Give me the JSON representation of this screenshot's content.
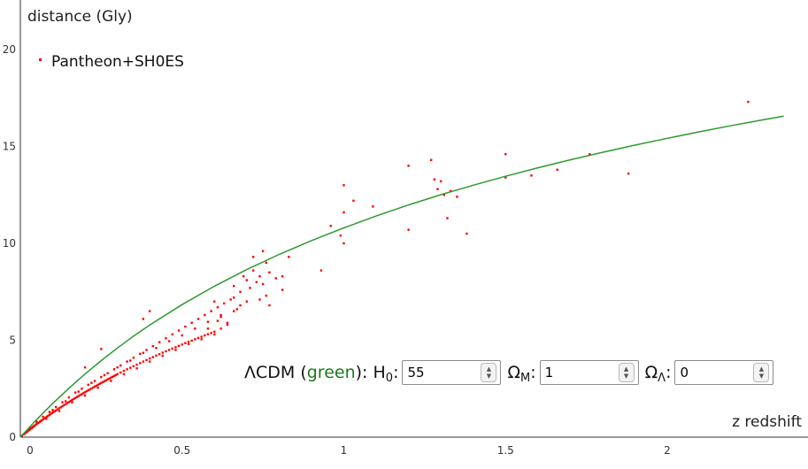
{
  "chart_data": {
    "type": "scatter",
    "ylabel": "distance (Gly)",
    "xlabel": "z redshift",
    "xlim": [
      0,
      2.4
    ],
    "ylim": [
      0,
      22
    ],
    "xticks": [
      0,
      0.5,
      1,
      1.5,
      2
    ],
    "xtick_labels": [
      "0",
      "0.5",
      "1",
      "1.5",
      "2"
    ],
    "yticks": [
      0,
      5,
      10,
      15,
      20
    ],
    "ytick_labels": [
      "0",
      "5",
      "10",
      "15",
      "20"
    ],
    "grid": false,
    "legend_position": "top-left",
    "series": [
      {
        "name": "Pantheon+SH0ES",
        "kind": "scatter",
        "color": "#ff0000",
        "points": [
          [
            0.005,
            0.07
          ],
          [
            0.01,
            0.14
          ],
          [
            0.012,
            0.17
          ],
          [
            0.015,
            0.21
          ],
          [
            0.018,
            0.25
          ],
          [
            0.02,
            0.28
          ],
          [
            0.022,
            0.3
          ],
          [
            0.025,
            0.34
          ],
          [
            0.028,
            0.38
          ],
          [
            0.03,
            0.41
          ],
          [
            0.033,
            0.45
          ],
          [
            0.035,
            0.47
          ],
          [
            0.038,
            0.51
          ],
          [
            0.04,
            0.54
          ],
          [
            0.043,
            0.58
          ],
          [
            0.046,
            0.62
          ],
          [
            0.05,
            0.67
          ],
          [
            0.053,
            0.71
          ],
          [
            0.056,
            0.74
          ],
          [
            0.06,
            0.79
          ],
          [
            0.063,
            0.83
          ],
          [
            0.066,
            0.86
          ],
          [
            0.07,
            0.91
          ],
          [
            0.074,
            0.96
          ],
          [
            0.078,
            1.01
          ],
          [
            0.082,
            1.06
          ],
          [
            0.086,
            1.1
          ],
          [
            0.09,
            1.15
          ],
          [
            0.094,
            1.2
          ],
          [
            0.098,
            1.24
          ],
          [
            0.102,
            1.29
          ],
          [
            0.106,
            1.33
          ],
          [
            0.11,
            1.38
          ],
          [
            0.115,
            1.43
          ],
          [
            0.12,
            1.49
          ],
          [
            0.125,
            1.54
          ],
          [
            0.13,
            1.6
          ],
          [
            0.135,
            1.65
          ],
          [
            0.14,
            1.7
          ],
          [
            0.145,
            1.76
          ],
          [
            0.15,
            1.81
          ],
          [
            0.155,
            1.86
          ],
          [
            0.16,
            1.92
          ],
          [
            0.165,
            1.97
          ],
          [
            0.17,
            2.02
          ],
          [
            0.175,
            2.07
          ],
          [
            0.18,
            2.12
          ],
          [
            0.185,
            2.17
          ],
          [
            0.19,
            2.22
          ],
          [
            0.195,
            2.27
          ],
          [
            0.2,
            2.32
          ],
          [
            0.205,
            2.37
          ],
          [
            0.21,
            2.42
          ],
          [
            0.215,
            2.46
          ],
          [
            0.22,
            2.51
          ],
          [
            0.225,
            2.56
          ],
          [
            0.23,
            2.61
          ],
          [
            0.235,
            2.65
          ],
          [
            0.24,
            2.7
          ],
          [
            0.245,
            2.75
          ],
          [
            0.25,
            2.8
          ],
          [
            0.255,
            2.84
          ],
          [
            0.26,
            2.89
          ],
          [
            0.265,
            2.93
          ],
          [
            0.27,
            2.98
          ],
          [
            0.275,
            3.02
          ],
          [
            0.28,
            3.07
          ],
          [
            0.285,
            3.11
          ],
          [
            0.29,
            3.16
          ],
          [
            0.295,
            3.2
          ],
          [
            0.3,
            3.25
          ],
          [
            0.31,
            3.33
          ],
          [
            0.32,
            3.42
          ],
          [
            0.33,
            3.5
          ],
          [
            0.34,
            3.58
          ],
          [
            0.35,
            3.66
          ],
          [
            0.36,
            3.74
          ],
          [
            0.37,
            3.82
          ],
          [
            0.38,
            3.9
          ],
          [
            0.39,
            3.98
          ],
          [
            0.4,
            4.06
          ],
          [
            0.41,
            4.13
          ],
          [
            0.42,
            4.21
          ],
          [
            0.43,
            4.28
          ],
          [
            0.44,
            4.36
          ],
          [
            0.45,
            4.43
          ],
          [
            0.46,
            4.5
          ],
          [
            0.47,
            4.57
          ],
          [
            0.48,
            4.64
          ],
          [
            0.49,
            4.71
          ],
          [
            0.5,
            4.78
          ],
          [
            0.51,
            4.85
          ],
          [
            0.52,
            4.92
          ],
          [
            0.53,
            4.98
          ],
          [
            0.54,
            5.05
          ],
          [
            0.55,
            5.12
          ],
          [
            0.56,
            5.18
          ],
          [
            0.57,
            5.25
          ],
          [
            0.58,
            5.31
          ],
          [
            0.59,
            5.37
          ],
          [
            0.6,
            5.44
          ],
          [
            0.03,
            0.5
          ],
          [
            0.05,
            0.8
          ],
          [
            0.07,
            1.05
          ],
          [
            0.09,
            1.3
          ],
          [
            0.11,
            1.55
          ],
          [
            0.13,
            1.8
          ],
          [
            0.15,
            2.05
          ],
          [
            0.17,
            2.3
          ],
          [
            0.19,
            2.5
          ],
          [
            0.21,
            2.7
          ],
          [
            0.23,
            2.9
          ],
          [
            0.25,
            3.1
          ],
          [
            0.27,
            3.3
          ],
          [
            0.29,
            3.5
          ],
          [
            0.31,
            3.7
          ],
          [
            0.33,
            3.9
          ],
          [
            0.35,
            4.1
          ],
          [
            0.37,
            4.3
          ],
          [
            0.39,
            4.5
          ],
          [
            0.41,
            4.7
          ],
          [
            0.43,
            4.9
          ],
          [
            0.45,
            5.1
          ],
          [
            0.47,
            5.3
          ],
          [
            0.49,
            5.5
          ],
          [
            0.51,
            5.7
          ],
          [
            0.53,
            5.9
          ],
          [
            0.55,
            6.1
          ],
          [
            0.57,
            6.3
          ],
          [
            0.59,
            6.5
          ],
          [
            0.61,
            6.7
          ],
          [
            0.63,
            6.9
          ],
          [
            0.65,
            7.1
          ],
          [
            0.08,
            0.95
          ],
          [
            0.12,
            1.35
          ],
          [
            0.16,
            1.8
          ],
          [
            0.2,
            2.15
          ],
          [
            0.24,
            2.55
          ],
          [
            0.28,
            2.9
          ],
          [
            0.32,
            3.25
          ],
          [
            0.36,
            3.55
          ],
          [
            0.4,
            3.9
          ],
          [
            0.44,
            4.2
          ],
          [
            0.48,
            4.5
          ],
          [
            0.52,
            4.8
          ],
          [
            0.56,
            5.05
          ],
          [
            0.6,
            5.3
          ],
          [
            0.62,
            5.6
          ],
          [
            0.64,
            5.9
          ],
          [
            0.1,
            1.4
          ],
          [
            0.14,
            1.85
          ],
          [
            0.18,
            2.35
          ],
          [
            0.22,
            2.8
          ],
          [
            0.26,
            3.2
          ],
          [
            0.3,
            3.6
          ],
          [
            0.34,
            3.95
          ],
          [
            0.38,
            4.35
          ],
          [
            0.42,
            4.6
          ],
          [
            0.46,
            4.95
          ],
          [
            0.5,
            5.25
          ],
          [
            0.54,
            5.6
          ],
          [
            0.58,
            5.95
          ],
          [
            0.62,
            6.2
          ],
          [
            0.66,
            6.5
          ],
          [
            0.68,
            6.8
          ],
          [
            0.25,
            4.55
          ],
          [
            0.2,
            3.6
          ],
          [
            0.4,
            6.5
          ],
          [
            0.38,
            6.1
          ],
          [
            0.66,
            7.8
          ],
          [
            0.7,
            8.1
          ],
          [
            0.72,
            8.6
          ],
          [
            0.74,
            8.3
          ],
          [
            0.71,
            7.7
          ],
          [
            0.75,
            7.9
          ],
          [
            0.77,
            8.5
          ],
          [
            0.76,
            7.3
          ],
          [
            0.68,
            7.5
          ],
          [
            0.73,
            8.0
          ],
          [
            0.79,
            8.2
          ],
          [
            0.74,
            7.1
          ],
          [
            0.66,
            7.2
          ],
          [
            0.69,
            8.3
          ],
          [
            0.72,
            9.3
          ],
          [
            0.75,
            9.6
          ],
          [
            0.76,
            9.0
          ],
          [
            0.77,
            6.8
          ],
          [
            0.81,
            8.3
          ],
          [
            0.81,
            7.6
          ],
          [
            0.83,
            9.3
          ],
          [
            0.62,
            6.3
          ],
          [
            0.64,
            5.8
          ],
          [
            0.61,
            6.0
          ],
          [
            0.67,
            6.6
          ],
          [
            0.7,
            7.0
          ],
          [
            0.6,
            7.0
          ],
          [
            0.58,
            5.6
          ],
          [
            0.93,
            8.6
          ],
          [
            0.96,
            10.9
          ],
          [
            0.99,
            10.4
          ],
          [
            1.0,
            11.6
          ],
          [
            1.0,
            13.0
          ],
          [
            1.03,
            12.2
          ],
          [
            1.0,
            10.0
          ],
          [
            1.09,
            11.9
          ],
          [
            1.2,
            10.7
          ],
          [
            1.2,
            14.0
          ],
          [
            1.27,
            14.3
          ],
          [
            1.28,
            13.3
          ],
          [
            1.29,
            12.8
          ],
          [
            1.3,
            13.2
          ],
          [
            1.31,
            12.5
          ],
          [
            1.32,
            11.3
          ],
          [
            1.33,
            12.7
          ],
          [
            1.35,
            12.4
          ],
          [
            1.38,
            10.5
          ],
          [
            1.5,
            13.4
          ],
          [
            1.5,
            14.6
          ],
          [
            1.58,
            13.5
          ],
          [
            1.66,
            13.8
          ],
          [
            1.76,
            14.6
          ],
          [
            1.88,
            13.6
          ],
          [
            2.25,
            17.3
          ]
        ]
      },
      {
        "name": "ΛCDM",
        "kind": "line",
        "color": "#2e9a2e",
        "points": [
          [
            0,
            0
          ],
          [
            0.05,
            0.9
          ],
          [
            0.1,
            1.74
          ],
          [
            0.15,
            2.52
          ],
          [
            0.2,
            3.26
          ],
          [
            0.25,
            3.95
          ],
          [
            0.3,
            4.6
          ],
          [
            0.35,
            5.21
          ],
          [
            0.4,
            5.79
          ],
          [
            0.5,
            6.84
          ],
          [
            0.6,
            7.79
          ],
          [
            0.7,
            8.65
          ],
          [
            0.8,
            9.43
          ],
          [
            0.9,
            10.14
          ],
          [
            1.0,
            10.8
          ],
          [
            1.1,
            11.41
          ],
          [
            1.2,
            11.98
          ],
          [
            1.3,
            12.51
          ],
          [
            1.4,
            13.0
          ],
          [
            1.5,
            13.46
          ],
          [
            1.6,
            13.9
          ],
          [
            1.7,
            14.31
          ],
          [
            1.8,
            14.7
          ],
          [
            1.9,
            15.07
          ],
          [
            2.0,
            15.42
          ],
          [
            2.1,
            15.76
          ],
          [
            2.2,
            16.08
          ],
          [
            2.3,
            16.39
          ],
          [
            2.36,
            16.56
          ]
        ]
      }
    ]
  },
  "legend": {
    "label": "Pantheon+SH0ES",
    "color": "#ff0000"
  },
  "controls": {
    "prefix": "ΛCDM (",
    "green_word": "green",
    "suffix": "): H",
    "h_sub": "0",
    "colon": ":",
    "h0_value": "55",
    "omega_m": "Ω",
    "omega_m_sub": "M",
    "omega_m_value": "1",
    "omega_l": "Ω",
    "omega_l_sub": "Λ",
    "omega_l_value": "0",
    "up_arrow": "▲",
    "down_arrow": "▼"
  }
}
